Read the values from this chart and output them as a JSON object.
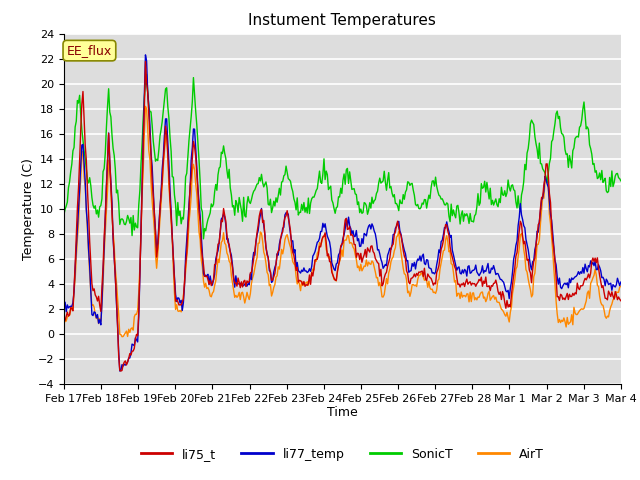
{
  "title": "Instument Temperatures",
  "xlabel": "Time",
  "ylabel": "Temperature (C)",
  "ylim": [
    -4,
    24
  ],
  "yticks": [
    -4,
    -2,
    0,
    2,
    4,
    6,
    8,
    10,
    12,
    14,
    16,
    18,
    20,
    22,
    24
  ],
  "xtick_labels": [
    "Feb 17",
    "Feb 18",
    "Feb 19",
    "Feb 20",
    "Feb 21",
    "Feb 22",
    "Feb 23",
    "Feb 24",
    "Feb 25",
    "Feb 26",
    "Feb 27",
    "Feb 28",
    "Mar 1",
    "Mar 2",
    "Mar 3",
    "Mar 4"
  ],
  "line_colors": {
    "li75_t": "#cc0000",
    "li77_temp": "#0000cc",
    "SonicT": "#00cc00",
    "AirT": "#ff8800"
  },
  "annotation_text": "EE_flux",
  "annotation_color": "#880000",
  "annotation_bg": "#ffff99",
  "plot_bg": "#dddddd",
  "grid_color": "#ffffff",
  "title_fontsize": 11,
  "axis_label_fontsize": 9,
  "tick_fontsize": 8,
  "n_points": 500,
  "seed": 42
}
